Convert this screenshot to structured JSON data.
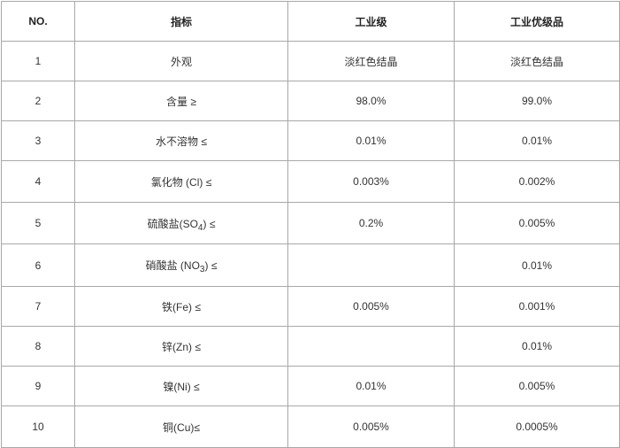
{
  "table": {
    "headers": [
      "NO.",
      "指标",
      "工业级",
      "工业优级品"
    ],
    "rows": [
      {
        "no": "1",
        "item": "外观",
        "sub": "",
        "suffix": "",
        "industrial": "淡红色结晶",
        "premium": "淡红色结晶"
      },
      {
        "no": "2",
        "item": "含量 ≥",
        "sub": "",
        "suffix": "",
        "industrial": "98.0%",
        "premium": "99.0%"
      },
      {
        "no": "3",
        "item": "水不溶物 ≤",
        "sub": "",
        "suffix": "",
        "industrial": "0.01%",
        "premium": "0.01%"
      },
      {
        "no": "4",
        "item": "氯化物 (Cl) ≤",
        "sub": "",
        "suffix": "",
        "industrial": "0.003%",
        "premium": "0.002%"
      },
      {
        "no": "5",
        "item": "硫酸盐(SO",
        "sub": "4",
        "suffix": ") ≤",
        "industrial": "0.2%",
        "premium": "0.005%"
      },
      {
        "no": "6",
        "item": "硝酸盐 (NO",
        "sub": "3",
        "suffix": ") ≤",
        "industrial": "",
        "premium": "0.01%"
      },
      {
        "no": "7",
        "item": "铁(Fe) ≤",
        "sub": "",
        "suffix": "",
        "industrial": "0.005%",
        "premium": "0.001%"
      },
      {
        "no": "8",
        "item": "锌(Zn) ≤",
        "sub": "",
        "suffix": "",
        "industrial": "",
        "premium": "0.01%"
      },
      {
        "no": "9",
        "item": "镍(Ni) ≤",
        "sub": "",
        "suffix": "",
        "industrial": "0.01%",
        "premium": "0.005%"
      },
      {
        "no": "10",
        "item": "铜(Cu)≤",
        "sub": "",
        "suffix": "",
        "industrial": "0.005%",
        "premium": "0.0005%"
      }
    ]
  }
}
